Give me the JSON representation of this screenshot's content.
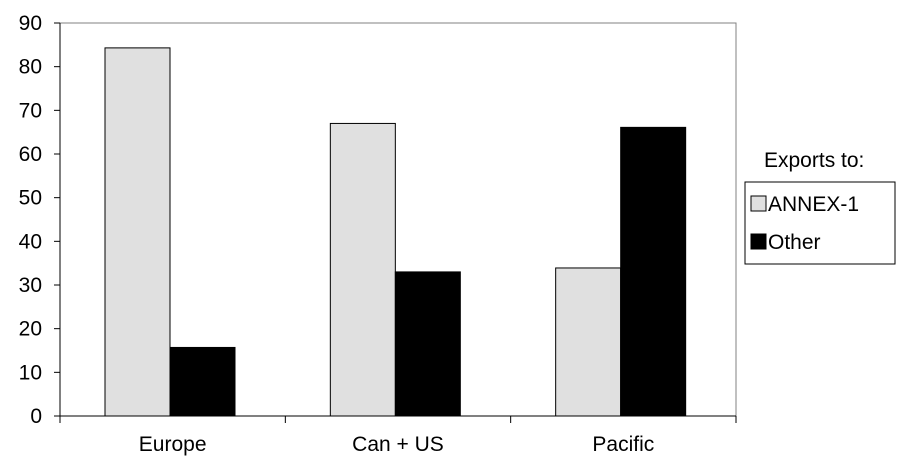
{
  "chart_data": {
    "type": "bar",
    "title": "",
    "xlabel": "",
    "ylabel": "",
    "categories": [
      "Europe",
      "Can + US",
      "Pacific"
    ],
    "series": [
      {
        "name": "ANNEX-1",
        "values": [
          84.3,
          67.0,
          33.9
        ],
        "color": "#e0e0e0"
      },
      {
        "name": "Other",
        "values": [
          15.7,
          33.0,
          66.1
        ],
        "color": "#000000"
      }
    ],
    "ylim": [
      0,
      90
    ],
    "yticks": [
      0,
      10,
      20,
      30,
      40,
      50,
      60,
      70,
      80,
      90
    ],
    "ytick_labels": [
      "0",
      "10",
      "20",
      "30",
      "40",
      "50",
      "60",
      "70",
      "80",
      "90"
    ],
    "grid": false,
    "legend": {
      "title": "Exports to:",
      "placement": "right"
    }
  }
}
